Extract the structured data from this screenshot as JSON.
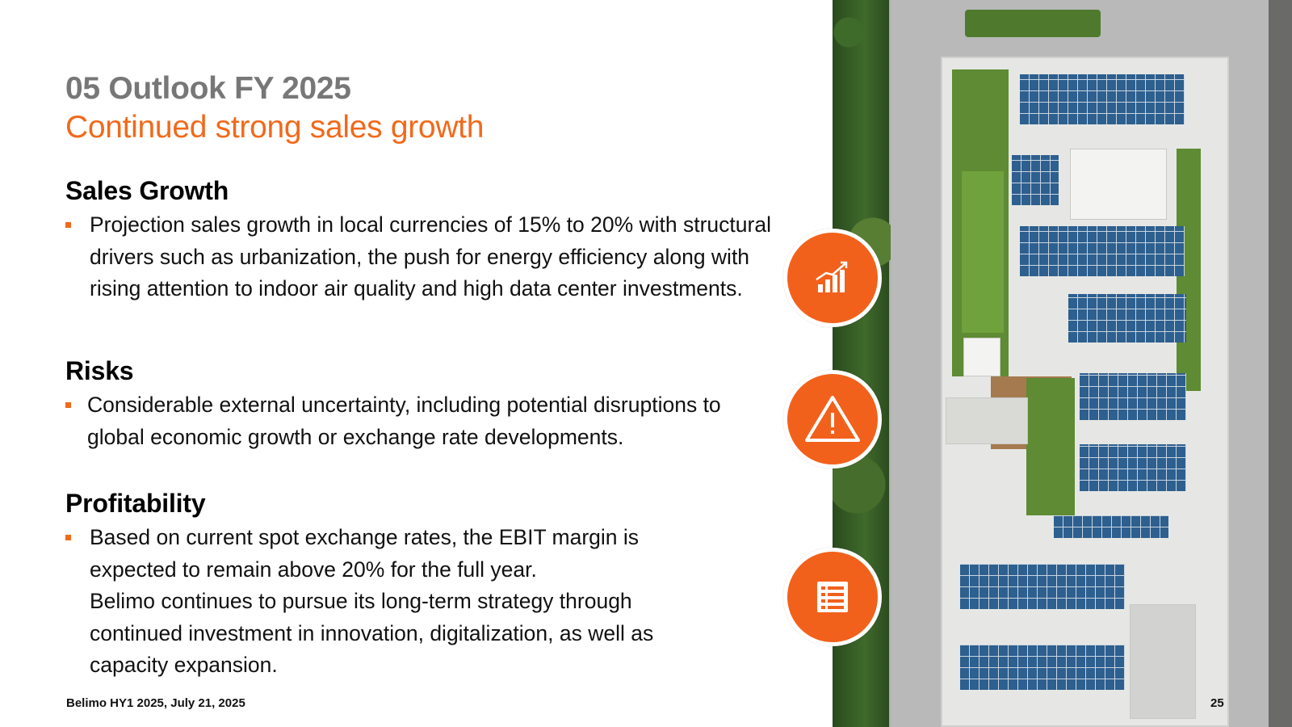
{
  "header": {
    "title": "05 Outlook FY 2025",
    "subtitle": "Continued strong sales growth"
  },
  "sections": [
    {
      "heading": "Sales Growth",
      "bullet": "Projection sales growth in local currencies of 15% to 20% with structural drivers such as urbanization, the push for energy efficiency along with rising attention to indoor air quality and high data center investments."
    },
    {
      "heading": "Risks",
      "bullet": "Considerable external uncertainty, including potential disruptions to global economic growth or exchange rate developments."
    },
    {
      "heading": "Profitability",
      "bullet": "Based on current spot exchange rates, the EBIT margin is expected to remain above 20% for the full year.",
      "continuation": "Belimo continues to pursue its long-term strategy through continued investment in innovation, digitalization, as well as capacity expansion."
    }
  ],
  "icons": [
    "growth-chart-icon",
    "warning-icon",
    "report-document-icon"
  ],
  "footer": {
    "text": "Belimo HY1 2025, July 21, 2025",
    "page_number": "25"
  },
  "colors": {
    "accent": "#f06a1b",
    "title_gray": "#777777",
    "icon_orange": "#f2611b"
  }
}
